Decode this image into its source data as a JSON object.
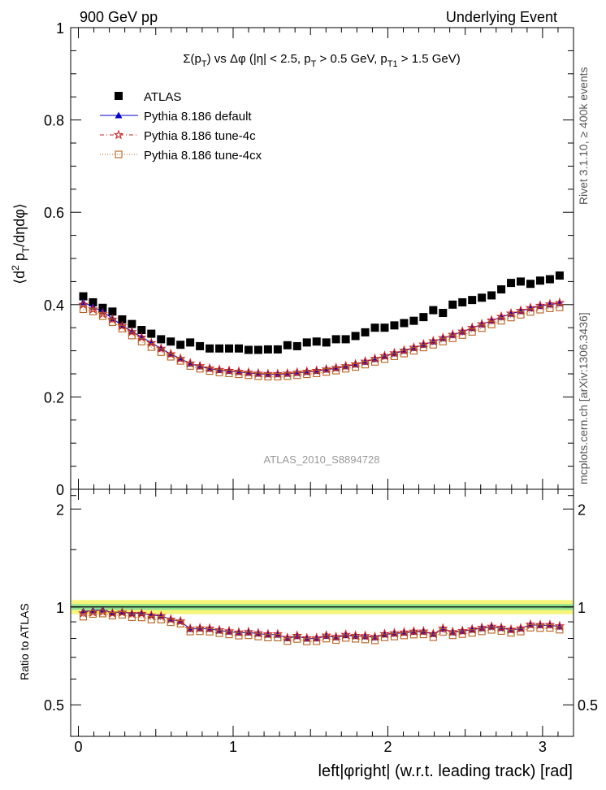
{
  "header": {
    "left": "900 GeV pp",
    "right": "Underlying Event"
  },
  "side_labels": {
    "rivet": "Rivet 3.1.10, ≥ 400k events",
    "mcplots": "mcplots.cern.ch [arXiv:1306.3436]"
  },
  "chart_data": {
    "type": "scatter",
    "title": "Σ(p_T) vs Δφ (|η| < 2.5, p_T > 0.5 GeV, p_T1 > 1.5 GeV)",
    "title_parts": {
      "a": "Σ(p",
      "a_sub": "T",
      "b": ") vs Δφ (|η| < 2.5, p",
      "b_sub": "T",
      "c": " > 0.5 GeV, p",
      "c_sub": "T1",
      "d": " > 1.5 GeV)"
    },
    "analysis_label": "ATLAS_2010_S8894728",
    "xlabel": "left|φright| (w.r.t. leading track) [rad]",
    "ylabel_parts": {
      "a": "⟨d",
      "sup": "2",
      "b": " p",
      "sub": "T",
      "c": "/dηdφ⟩"
    },
    "ratio_ylabel": "Ratio to ATLAS",
    "xlim": [
      -0.05,
      3.2
    ],
    "ylim": [
      0,
      1
    ],
    "ratio_ylim": [
      0.4,
      2.3
    ],
    "x_ticks": [
      0,
      1,
      2,
      3
    ],
    "x_tick_labels": [
      "0",
      "1",
      "2",
      "3"
    ],
    "y_ticks": [
      0,
      0.2,
      0.4,
      0.6,
      0.8,
      1
    ],
    "y_tick_labels": [
      "0",
      "0.2",
      "0.4",
      "0.6",
      "0.8",
      "1"
    ],
    "ratio_ticks": [
      0.5,
      1,
      2
    ],
    "ratio_tick_labels": [
      "0.5",
      "1",
      "2"
    ],
    "ratio_band": {
      "inner": [
        0.98,
        1.02
      ],
      "outer": [
        0.95,
        1.05
      ]
    },
    "x": [
      0.0314,
      0.0942,
      0.1571,
      0.2199,
      0.2827,
      0.3456,
      0.4084,
      0.4712,
      0.5341,
      0.5969,
      0.6597,
      0.7226,
      0.7854,
      0.8482,
      0.9111,
      0.9739,
      1.0367,
      1.0996,
      1.1624,
      1.2252,
      1.2881,
      1.3509,
      1.4137,
      1.4765,
      1.5394,
      1.6022,
      1.665,
      1.7279,
      1.7907,
      1.8535,
      1.9164,
      1.9792,
      2.042,
      2.1049,
      2.1677,
      2.2305,
      2.2934,
      2.3562,
      2.419,
      2.4819,
      2.5447,
      2.6075,
      2.6704,
      2.7332,
      2.796,
      2.8588,
      2.9217,
      2.9845,
      3.0473,
      3.1102
    ],
    "series": [
      {
        "name": "ATLAS",
        "color": "#000000",
        "marker": "square",
        "values": [
          0.418,
          0.405,
          0.393,
          0.385,
          0.368,
          0.358,
          0.345,
          0.337,
          0.325,
          0.32,
          0.313,
          0.318,
          0.31,
          0.305,
          0.305,
          0.305,
          0.305,
          0.302,
          0.302,
          0.303,
          0.303,
          0.312,
          0.31,
          0.318,
          0.32,
          0.318,
          0.325,
          0.325,
          0.332,
          0.34,
          0.35,
          0.35,
          0.355,
          0.36,
          0.365,
          0.373,
          0.388,
          0.382,
          0.4,
          0.405,
          0.41,
          0.415,
          0.42,
          0.433,
          0.447,
          0.45,
          0.445,
          0.452,
          0.455,
          0.463
        ],
        "ratio": [
          1,
          1,
          1,
          1,
          1,
          1,
          1,
          1,
          1,
          1,
          1,
          1,
          1,
          1,
          1,
          1,
          1,
          1,
          1,
          1,
          1,
          1,
          1,
          1,
          1,
          1,
          1,
          1,
          1,
          1,
          1,
          1,
          1,
          1,
          1,
          1,
          1,
          1,
          1,
          1,
          1,
          1,
          1,
          1,
          1,
          1,
          1,
          1,
          1,
          1
        ]
      },
      {
        "name": "Pythia 8.186 default",
        "color": "#0000cc",
        "marker": "triangle",
        "values": [
          0.405,
          0.395,
          0.385,
          0.37,
          0.355,
          0.342,
          0.33,
          0.318,
          0.305,
          0.293,
          0.283,
          0.272,
          0.266,
          0.261,
          0.258,
          0.256,
          0.254,
          0.252,
          0.25,
          0.249,
          0.249,
          0.25,
          0.252,
          0.254,
          0.256,
          0.259,
          0.262,
          0.266,
          0.27,
          0.276,
          0.282,
          0.288,
          0.294,
          0.3,
          0.306,
          0.313,
          0.32,
          0.327,
          0.334,
          0.341,
          0.349,
          0.357,
          0.365,
          0.373,
          0.38,
          0.386,
          0.392,
          0.397,
          0.4,
          0.403
        ],
        "ratio": [
          0.969,
          0.975,
          0.98,
          0.961,
          0.965,
          0.955,
          0.957,
          0.944,
          0.938,
          0.916,
          0.904,
          0.855,
          0.858,
          0.856,
          0.846,
          0.839,
          0.833,
          0.834,
          0.828,
          0.822,
          0.822,
          0.801,
          0.813,
          0.799,
          0.8,
          0.814,
          0.806,
          0.818,
          0.813,
          0.812,
          0.806,
          0.823,
          0.828,
          0.833,
          0.838,
          0.839,
          0.825,
          0.856,
          0.835,
          0.842,
          0.851,
          0.86,
          0.869,
          0.861,
          0.85,
          0.858,
          0.881,
          0.878,
          0.879,
          0.87
        ]
      },
      {
        "name": "Pythia 8.186 tune-4c",
        "color": "#cc2222",
        "marker": "star",
        "values": [
          0.4,
          0.39,
          0.38,
          0.368,
          0.354,
          0.341,
          0.329,
          0.317,
          0.305,
          0.293,
          0.283,
          0.273,
          0.267,
          0.262,
          0.259,
          0.257,
          0.255,
          0.253,
          0.251,
          0.25,
          0.25,
          0.251,
          0.253,
          0.255,
          0.257,
          0.26,
          0.263,
          0.267,
          0.271,
          0.277,
          0.283,
          0.289,
          0.295,
          0.301,
          0.307,
          0.314,
          0.321,
          0.328,
          0.335,
          0.342,
          0.35,
          0.358,
          0.366,
          0.374,
          0.381,
          0.387,
          0.393,
          0.398,
          0.401,
          0.404
        ],
        "ratio": [
          0.957,
          0.963,
          0.967,
          0.956,
          0.962,
          0.953,
          0.954,
          0.941,
          0.938,
          0.916,
          0.904,
          0.858,
          0.861,
          0.859,
          0.849,
          0.843,
          0.836,
          0.838,
          0.831,
          0.825,
          0.825,
          0.804,
          0.816,
          0.802,
          0.803,
          0.818,
          0.809,
          0.822,
          0.816,
          0.815,
          0.809,
          0.826,
          0.831,
          0.836,
          0.841,
          0.842,
          0.827,
          0.859,
          0.838,
          0.844,
          0.854,
          0.863,
          0.871,
          0.864,
          0.852,
          0.86,
          0.883,
          0.881,
          0.881,
          0.873
        ]
      },
      {
        "name": "Pythia 8.186 tune-4cx",
        "color": "#b8601c",
        "marker": "open-square",
        "values": [
          0.39,
          0.385,
          0.375,
          0.362,
          0.348,
          0.333,
          0.32,
          0.308,
          0.297,
          0.287,
          0.278,
          0.267,
          0.261,
          0.256,
          0.253,
          0.251,
          0.249,
          0.247,
          0.245,
          0.244,
          0.244,
          0.245,
          0.247,
          0.249,
          0.251,
          0.254,
          0.257,
          0.261,
          0.265,
          0.27,
          0.276,
          0.282,
          0.288,
          0.294,
          0.3,
          0.307,
          0.313,
          0.32,
          0.327,
          0.334,
          0.341,
          0.349,
          0.357,
          0.365,
          0.372,
          0.378,
          0.384,
          0.389,
          0.392,
          0.394
        ],
        "ratio": [
          0.933,
          0.951,
          0.954,
          0.94,
          0.946,
          0.93,
          0.928,
          0.914,
          0.914,
          0.897,
          0.888,
          0.84,
          0.842,
          0.839,
          0.83,
          0.823,
          0.816,
          0.818,
          0.811,
          0.805,
          0.805,
          0.785,
          0.797,
          0.783,
          0.784,
          0.799,
          0.791,
          0.803,
          0.798,
          0.794,
          0.789,
          0.806,
          0.811,
          0.817,
          0.822,
          0.823,
          0.807,
          0.838,
          0.818,
          0.825,
          0.832,
          0.841,
          0.85,
          0.843,
          0.832,
          0.84,
          0.863,
          0.861,
          0.862,
          0.851
        ]
      }
    ]
  }
}
